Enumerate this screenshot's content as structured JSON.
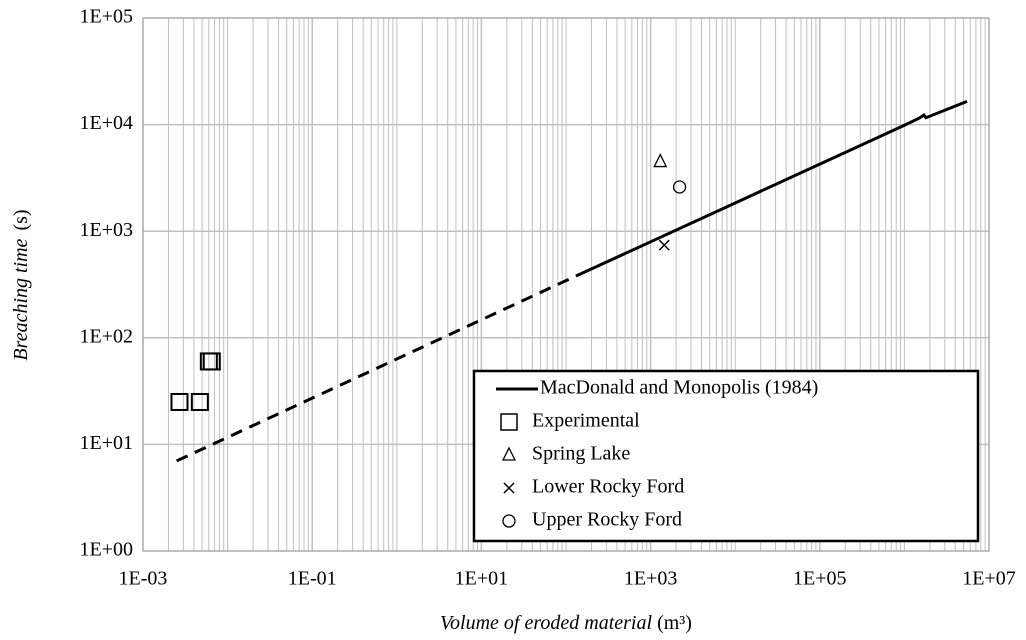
{
  "chart_data": {
    "type": "scatter",
    "xlabel": {
      "italic": "Volume of eroded material",
      "plain": "(m³)"
    },
    "ylabel": {
      "italic": "Breaching time",
      "plain": "(s)"
    },
    "xlog": true,
    "ylog": true,
    "grid": true,
    "minor_grid_x": true,
    "xlim": [
      0.001,
      10000000
    ],
    "ylim": [
      1,
      100000
    ],
    "xticks": [
      {
        "value": 0.001,
        "label": "1E-03"
      },
      {
        "value": 0.1,
        "label": "1E-01"
      },
      {
        "value": 10,
        "label": "1E+01"
      },
      {
        "value": 1000,
        "label": "1E+03"
      },
      {
        "value": 100000,
        "label": "1E+05"
      },
      {
        "value": 10000000,
        "label": "1E+07"
      }
    ],
    "yticks": [
      {
        "value": 1,
        "label": "1E+00"
      },
      {
        "value": 10,
        "label": "1E+01"
      },
      {
        "value": 100,
        "label": "1E+02"
      },
      {
        "value": 1000,
        "label": "1E+03"
      },
      {
        "value": 10000,
        "label": "1E+04"
      },
      {
        "value": 100000,
        "label": "1E+05"
      }
    ],
    "legend": "lower right",
    "series": [
      {
        "kind": "line",
        "style": "dashed",
        "color": "#000000",
        "x": [
          0.0025,
          150
        ],
        "values": [
          7,
          399
        ]
      },
      {
        "kind": "line",
        "style": "solid",
        "name": "MacDonald and Monopolis (1984)",
        "color": "#000000",
        "x": [
          150,
          1000,
          10000,
          100000,
          1000000,
          1500000,
          1700000,
          1800000,
          5500000
        ],
        "values": [
          399,
          795,
          1840,
          4260,
          9860,
          11500,
          12300,
          11600,
          16500
        ]
      },
      {
        "kind": "marker",
        "marker": "square",
        "name": "Experimental",
        "color": "#000000",
        "x": [
          0.0027,
          0.0047,
          0.006,
          0.0065
        ],
        "values": [
          25,
          25,
          60,
          60
        ]
      },
      {
        "kind": "marker",
        "marker": "triangle",
        "name": "Spring Lake",
        "color": "#000000",
        "x": [
          1300
        ],
        "values": [
          4500
        ]
      },
      {
        "kind": "marker",
        "marker": "cross",
        "name": "Lower Rocky Ford",
        "color": "#000000",
        "x": [
          1450
        ],
        "values": [
          740
        ]
      },
      {
        "kind": "marker",
        "marker": "circle",
        "name": "Upper Rocky Ford",
        "color": "#000000",
        "x": [
          2200
        ],
        "values": [
          2600
        ]
      }
    ]
  }
}
